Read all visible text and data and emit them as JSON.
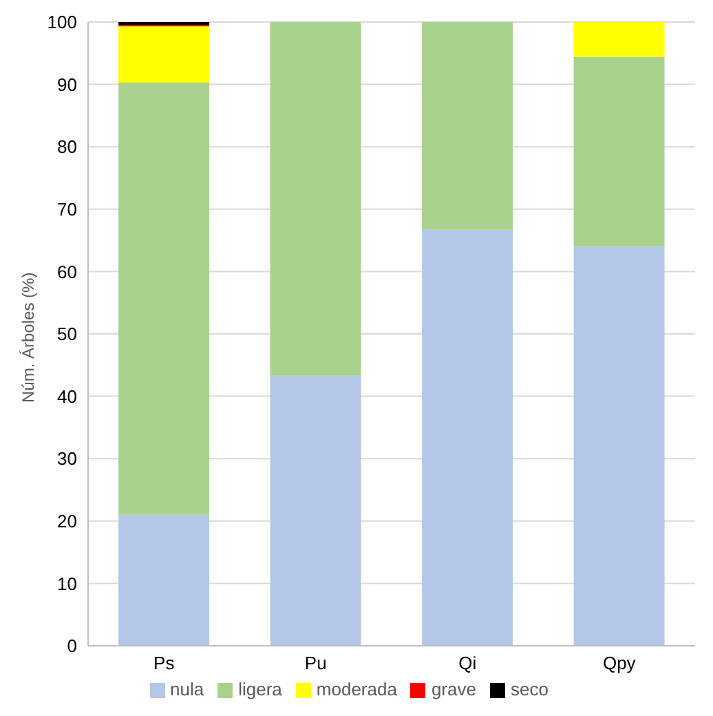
{
  "chart_data": {
    "type": "bar",
    "stacked": true,
    "ylabel": "Núm. Árboles (%)",
    "categories": [
      "Ps",
      "Pu",
      "Qi",
      "Qpy"
    ],
    "series": [
      {
        "name": "nula",
        "color": "#b4c7e7",
        "values": [
          21.0,
          43.3,
          66.7,
          64.0
        ]
      },
      {
        "name": "ligera",
        "color": "#a9d18e",
        "values": [
          69.3,
          56.7,
          33.3,
          30.4
        ]
      },
      {
        "name": "moderada",
        "color": "#ffff00",
        "values": [
          9.0,
          0,
          0,
          5.6
        ]
      },
      {
        "name": "grave",
        "color": "#ff0000",
        "values": [
          0.2,
          0,
          0,
          0
        ]
      },
      {
        "name": "seco",
        "color": "#000000",
        "values": [
          0.5,
          0,
          0,
          0
        ]
      }
    ],
    "ylim": [
      0,
      100
    ],
    "yticks": [
      0,
      10,
      20,
      30,
      40,
      50,
      60,
      70,
      80,
      90,
      100
    ],
    "grid": "y",
    "legend": "bottom"
  }
}
